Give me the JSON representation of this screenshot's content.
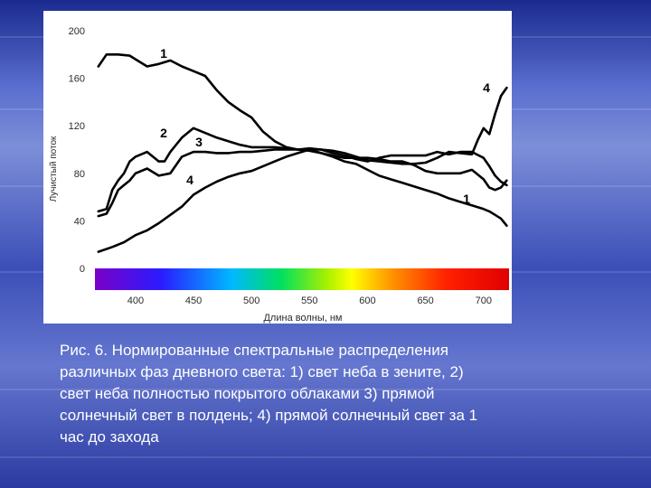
{
  "chart_data": {
    "type": "line",
    "ylabel": "Лучистый поток",
    "xlabel": "Длина волны, нм",
    "xlim": [
      365,
      722
    ],
    "ylim": [
      0,
      200
    ],
    "x_ticks": [
      "400",
      "450",
      "500",
      "550",
      "600",
      "650",
      "700"
    ],
    "y_ticks": [
      "0",
      "40",
      "80",
      "120",
      "160",
      "200"
    ],
    "grid": false,
    "series": [
      {
        "name": "1",
        "x": [
          368,
          375,
          385,
          395,
          400,
          410,
          420,
          430,
          440,
          450,
          460,
          470,
          480,
          490,
          500,
          510,
          520,
          530,
          540,
          550,
          560,
          570,
          580,
          590,
          600,
          610,
          620,
          630,
          640,
          650,
          660,
          670,
          680,
          690,
          700,
          705,
          710,
          715,
          720
        ],
        "y": [
          170,
          180,
          180,
          179,
          176,
          170,
          172,
          175,
          170,
          166,
          162,
          150,
          140,
          133,
          127,
          115,
          107,
          102,
          100,
          100,
          97,
          94,
          90,
          88,
          83,
          78,
          75,
          72,
          69,
          66,
          63,
          59,
          56,
          53,
          50,
          48,
          45,
          42,
          36
        ]
      },
      {
        "name": "2",
        "x": [
          368,
          375,
          380,
          385,
          390,
          395,
          400,
          410,
          420,
          425,
          430,
          440,
          450,
          460,
          470,
          480,
          490,
          500,
          510,
          520,
          530,
          540,
          550,
          560,
          570,
          580,
          590,
          600,
          610,
          620,
          630,
          640,
          650,
          660,
          670,
          680,
          690,
          700,
          705,
          710,
          715,
          720
        ],
        "y": [
          48,
          50,
          66,
          74,
          80,
          90,
          94,
          98,
          90,
          90,
          98,
          110,
          118,
          114,
          110,
          107,
          104,
          102,
          102,
          102,
          101,
          100,
          99,
          97,
          95,
          93,
          93,
          93,
          92,
          90,
          90,
          87,
          82,
          80,
          80,
          80,
          83,
          75,
          68,
          66,
          68,
          74
        ]
      },
      {
        "name": "3",
        "x": [
          368,
          375,
          380,
          385,
          390,
          395,
          400,
          410,
          420,
          430,
          440,
          450,
          460,
          470,
          480,
          490,
          500,
          510,
          520,
          530,
          540,
          550,
          560,
          570,
          580,
          590,
          600,
          610,
          620,
          630,
          640,
          650,
          660,
          670,
          680,
          690,
          700,
          705,
          710,
          715,
          720
        ],
        "y": [
          44,
          46,
          55,
          66,
          70,
          74,
          80,
          84,
          78,
          80,
          94,
          98,
          98,
          97,
          97,
          98,
          98,
          99,
          100,
          100,
          100,
          101,
          100,
          97,
          95,
          92,
          90,
          93,
          95,
          95,
          95,
          95,
          98,
          96,
          98,
          98,
          93,
          86,
          78,
          73,
          70
        ]
      },
      {
        "name": "4",
        "x": [
          368,
          380,
          390,
          400,
          410,
          420,
          430,
          440,
          450,
          460,
          470,
          480,
          490,
          500,
          510,
          520,
          530,
          540,
          550,
          560,
          570,
          580,
          590,
          600,
          610,
          620,
          630,
          640,
          650,
          660,
          670,
          680,
          690,
          695,
          700,
          705,
          710,
          715,
          720
        ],
        "y": [
          14,
          18,
          22,
          28,
          32,
          38,
          45,
          52,
          62,
          68,
          73,
          77,
          80,
          82,
          86,
          90,
          94,
          97,
          100,
          100,
          99,
          97,
          94,
          91,
          90,
          89,
          88,
          88,
          89,
          93,
          98,
          97,
          96,
          108,
          118,
          113,
          130,
          145,
          152
        ]
      }
    ],
    "annotations": [
      "1",
      "2",
      "3",
      "4",
      "1",
      "4"
    ]
  },
  "caption": {
    "lines": [
      "Рис.  6. Нормированные спектральные распределения",
      "различных фаз дневного света: 1) свет неба в зените, 2)",
      "свет неба полностью покрытого облаками 3) прямой",
      "солнечный свет в полдень; 4) прямой солнечный свет за 1",
      "час до захода"
    ]
  },
  "colors": {
    "curve": "#000000",
    "axis_text": "#2b2b2b",
    "caption_text": "#ffffff"
  }
}
